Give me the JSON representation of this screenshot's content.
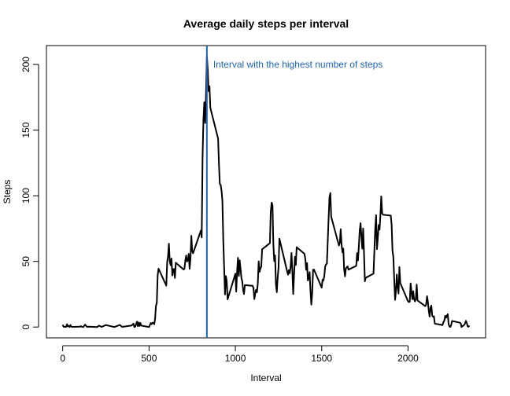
{
  "chart_data": {
    "type": "line",
    "title": "Average daily steps per interval",
    "x_label": "Interval",
    "y_label": "Steps",
    "x": [
      0,
      5,
      10,
      15,
      20,
      25,
      30,
      35,
      40,
      45,
      50,
      55,
      100,
      105,
      110,
      120,
      125,
      130,
      140,
      150,
      200,
      210,
      225,
      250,
      300,
      330,
      345,
      400,
      410,
      415,
      420,
      430,
      435,
      440,
      445,
      450,
      455,
      500,
      505,
      510,
      515,
      520,
      525,
      530,
      535,
      540,
      545,
      550,
      555,
      600,
      605,
      610,
      615,
      620,
      625,
      630,
      635,
      640,
      645,
      650,
      655,
      700,
      705,
      710,
      715,
      720,
      725,
      730,
      735,
      740,
      745,
      750,
      755,
      800,
      805,
      810,
      815,
      820,
      825,
      830,
      835,
      840,
      845,
      850,
      855,
      900,
      905,
      910,
      915,
      920,
      925,
      930,
      935,
      940,
      945,
      950,
      955,
      1000,
      1005,
      1010,
      1015,
      1020,
      1025,
      1030,
      1035,
      1040,
      1045,
      1050,
      1055,
      1100,
      1105,
      1110,
      1115,
      1120,
      1125,
      1130,
      1135,
      1140,
      1145,
      1150,
      1155,
      1200,
      1205,
      1210,
      1215,
      1220,
      1225,
      1230,
      1235,
      1240,
      1245,
      1250,
      1255,
      1300,
      1305,
      1310,
      1315,
      1320,
      1325,
      1330,
      1335,
      1340,
      1345,
      1350,
      1355,
      1400,
      1405,
      1410,
      1415,
      1420,
      1425,
      1430,
      1435,
      1440,
      1445,
      1450,
      1455,
      1500,
      1505,
      1510,
      1515,
      1520,
      1525,
      1530,
      1535,
      1540,
      1545,
      1550,
      1555,
      1600,
      1605,
      1610,
      1615,
      1620,
      1625,
      1630,
      1635,
      1640,
      1645,
      1650,
      1655,
      1700,
      1705,
      1710,
      1715,
      1720,
      1725,
      1730,
      1735,
      1740,
      1745,
      1750,
      1755,
      1800,
      1805,
      1810,
      1815,
      1820,
      1825,
      1830,
      1835,
      1840,
      1845,
      1850,
      1855,
      1900,
      1905,
      1910,
      1915,
      1920,
      1925,
      1930,
      1935,
      1940,
      1945,
      1950,
      1955,
      2000,
      2005,
      2010,
      2015,
      2020,
      2025,
      2030,
      2035,
      2040,
      2045,
      2050,
      2055,
      2100,
      2105,
      2110,
      2115,
      2120,
      2125,
      2130,
      2135,
      2140,
      2145,
      2150,
      2155,
      2200,
      2205,
      2210,
      2215,
      2220,
      2225,
      2230,
      2235,
      2240,
      2245,
      2250,
      2255,
      2300,
      2305,
      2310,
      2315,
      2320,
      2325,
      2330,
      2335,
      2340,
      2345,
      2350,
      2355
    ],
    "series": [
      {
        "name": "Steps",
        "color": "#000000",
        "values": [
          1.7,
          0.3,
          0.1,
          0.2,
          0.1,
          2.1,
          0.5,
          0.9,
          0,
          1.5,
          0.3,
          0.1,
          0.3,
          0.7,
          0.2,
          0,
          1.1,
          1.8,
          0.2,
          0.3,
          0,
          1.1,
          0.1,
          1.5,
          0,
          1.6,
          0.1,
          1.2,
          2.6,
          0,
          0.3,
          4.1,
          0.7,
          3.5,
          0.8,
          3.1,
          1.1,
          0,
          1.6,
          3.0,
          2.2,
          3.3,
          3.0,
          2.1,
          6.1,
          16.0,
          18.3,
          39.5,
          44.5,
          31.5,
          49.3,
          53.8,
          63.5,
          50.0,
          47.1,
          52.2,
          39.3,
          44.0,
          44.2,
          37.4,
          49.0,
          43.8,
          44.4,
          50.5,
          54.5,
          49.9,
          51.0,
          55.7,
          44.3,
          52.3,
          69.5,
          57.8,
          56.2,
          73.4,
          68.2,
          129.4,
          157.5,
          171.2,
          155.4,
          177.3,
          206.2,
          195.9,
          179.6,
          183.4,
          167.0,
          143.5,
          124.0,
          109.1,
          108.1,
          103.7,
          96.0,
          66.2,
          45.2,
          24.8,
          38.8,
          35.0,
          21.1,
          40.6,
          27.0,
          42.4,
          52.7,
          38.9,
          50.8,
          44.3,
          37.4,
          34.7,
          28.3,
          25.1,
          31.9,
          31.4,
          29.7,
          21.3,
          25.5,
          28.4,
          26.5,
          33.4,
          50.0,
          42.0,
          44.6,
          46.0,
          59.2,
          63.9,
          87.7,
          94.8,
          92.8,
          63.4,
          50.2,
          54.5,
          32.4,
          26.5,
          37.7,
          45.1,
          67.3,
          42.3,
          39.9,
          43.3,
          41.0,
          46.2,
          56.4,
          42.8,
          25.1,
          40.0,
          53.5,
          47.3,
          60.8,
          55.8,
          52.0,
          43.6,
          48.7,
          35.5,
          37.5,
          41.8,
          27.5,
          17.1,
          26.1,
          43.6,
          43.8,
          30.0,
          36.1,
          35.5,
          38.8,
          46.0,
          47.8,
          48.1,
          65.3,
          82.9,
          98.7,
          102.1,
          84.0,
          62.1,
          64.1,
          74.5,
          63.2,
          56.9,
          59.8,
          43.9,
          38.6,
          44.7,
          45.5,
          46.2,
          43.7,
          46.6,
          56.3,
          50.7,
          61.2,
          73.4,
          79.1,
          68.9,
          59.7,
          75.1,
          56.5,
          34.8,
          37.5,
          40.7,
          58.0,
          74.7,
          85.3,
          59.3,
          67.8,
          77.7,
          74.2,
          85.3,
          99.5,
          86.6,
          85.6,
          84.9,
          77.8,
          58.0,
          53.4,
          36.3,
          20.7,
          27.4,
          40.0,
          30.2,
          25.5,
          45.7,
          33.5,
          19.6,
          19.0,
          19.3,
          33.3,
          26.8,
          21.2,
          27.3,
          21.3,
          19.5,
          21.3,
          32.3,
          20.2,
          15.9,
          17.2,
          23.5,
          19.2,
          12.5,
          8.0,
          14.7,
          16.3,
          8.7,
          7.8,
          8.1,
          2.6,
          1.5,
          3.7,
          4.8,
          8.5,
          7.1,
          8.7,
          9.8,
          2.2,
          0.3,
          0.1,
          1.6,
          4.6,
          3.3,
          2.8,
          0,
          0.8,
          1.0,
          1.6,
          2.6,
          4.7,
          3.3,
          0.6,
          0.2,
          1.1
        ]
      }
    ],
    "vline": {
      "x": 835,
      "color": "#1f64b4",
      "label": "Interval with the highest number of steps",
      "label_y": 200
    },
    "xlim": [
      -94.2,
      2449.2
    ],
    "ylim": [
      -8.25,
      214.4
    ],
    "xticks": [
      0,
      500,
      1000,
      1500,
      2000
    ],
    "yticks": [
      0,
      50,
      100,
      150,
      200
    ]
  }
}
